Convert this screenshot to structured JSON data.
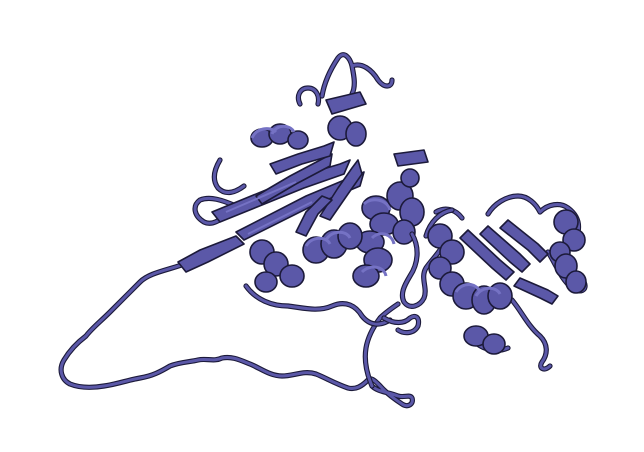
{
  "image": {
    "subject": "protein-cartoon-structure",
    "background_color": "#ffffff",
    "ribbon_color": "#5b58a8",
    "outline_color": "#1c1a3a",
    "highlight_color": "#7572c4"
  }
}
